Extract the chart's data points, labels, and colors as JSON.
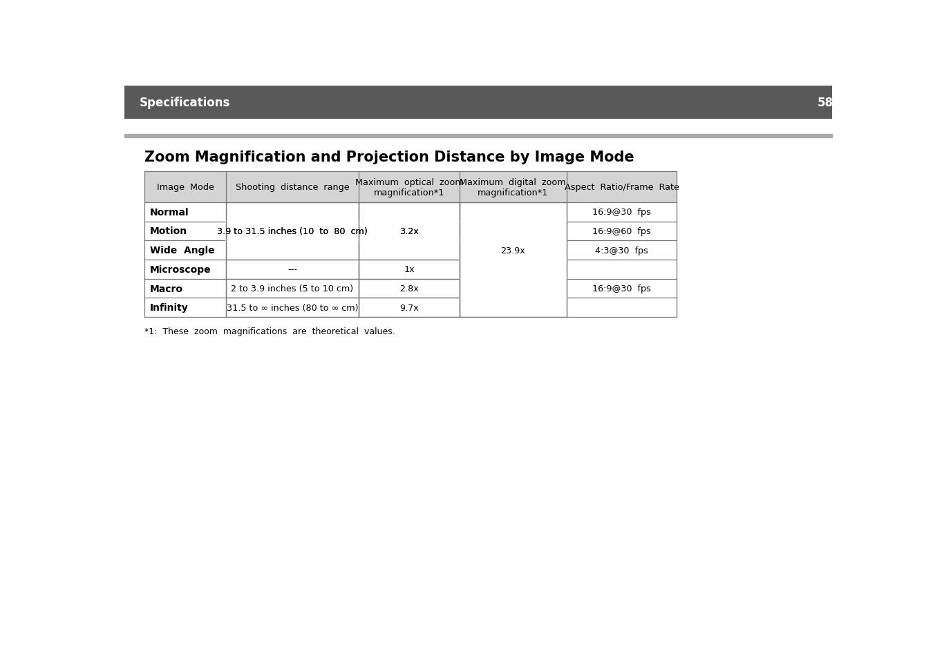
{
  "header_bg": "#595959",
  "header_text_color": "#ffffff",
  "header_label": "Specifications",
  "header_page": "58",
  "section_title": "Zoom Magnification and Projection Distance by Image Mode",
  "section_title_color": "#000000",
  "rule_color": "#999999",
  "table_header_bg": "#d4d4d4",
  "table_border_color": "#777777",
  "col_headers": [
    "Image  Mode",
    "Shooting  distance  range",
    "Maximum  optical  zoom\nmagnification*1",
    "Maximum  digital  zoom\nmagnification*1",
    "Aspect  Ratio/Frame  Rate"
  ],
  "rows": [
    {
      "mode": "Normal",
      "distance": "",
      "optical": "",
      "aspect": "16:9@30  fps"
    },
    {
      "mode": "Motion",
      "distance": "3.9 to 31.5 inches (10  to  80  cm)",
      "optical": "3.2x",
      "aspect": "16:9@60  fps"
    },
    {
      "mode": "Wide  Angle",
      "distance": "",
      "optical": "",
      "aspect": "4:3@30  fps"
    },
    {
      "mode": "Microscope",
      "distance": "---",
      "optical": "1x",
      "aspect": ""
    },
    {
      "mode": "Macro",
      "distance": "2 to 3.9 inches (5 to 10 cm)",
      "optical": "2.8x",
      "aspect": "16:9@30  fps"
    },
    {
      "mode": "Infinity",
      "distance": "31.5 to ∞ inches (80 to ∞ cm)",
      "optical": "9.7x",
      "aspect": ""
    }
  ],
  "digital_merged_value": "23.9x",
  "footnote": "*1:  These  zoom  magnifications  are  theoretical  values.",
  "bg_color": "#ffffff"
}
